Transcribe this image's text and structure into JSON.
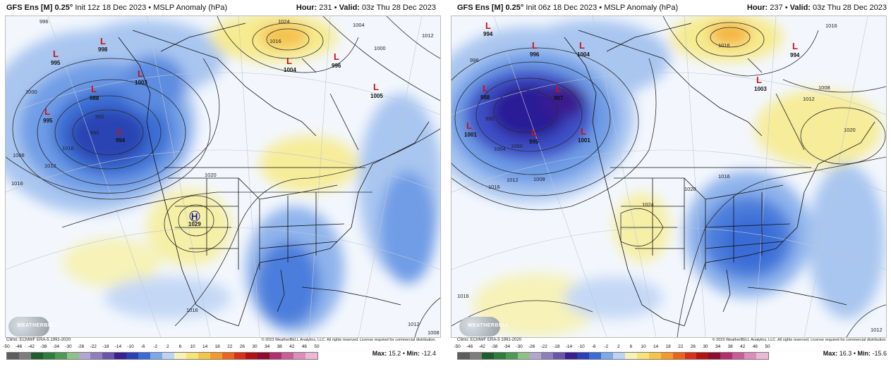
{
  "panels": [
    {
      "model": "GFS Ens [M] 0.25°",
      "init": "Init 12z 18 Dec 2023",
      "field": "MSLP Anomaly (hPa)",
      "hour_label": "Hour:",
      "hour_value": "231",
      "valid_label": "Valid:",
      "valid_value": "03z Thu 28 Dec 2023",
      "max_label": "Max:",
      "max_value": "15.2",
      "min_label": "Min:",
      "min_value": "-12.4",
      "pressure_labels": [
        {
          "type": "L",
          "value": "998"
        },
        {
          "type": "L",
          "value": "995"
        },
        {
          "type": "L",
          "value": "1003"
        },
        {
          "type": "L",
          "value": "988"
        },
        {
          "type": "L",
          "value": "995"
        },
        {
          "type": "L",
          "value": "994"
        },
        {
          "type": "L",
          "value": "1004"
        },
        {
          "type": "L",
          "value": "996"
        },
        {
          "type": "L",
          "value": "1005"
        },
        {
          "type": "H",
          "value": "1029"
        }
      ],
      "isobar_labels": [
        "996",
        "1004",
        "1008",
        "1016",
        "1012",
        "1000",
        "992",
        "996",
        "1020",
        "1024",
        "1016",
        "1004",
        "1000",
        "1012",
        "1016",
        "1012",
        "1008"
      ]
    },
    {
      "model": "GFS Ens [M] 0.25°",
      "init": "Init 06z 18 Dec 2023",
      "field": "MSLP Anomaly (hPa)",
      "hour_label": "Hour:",
      "hour_value": "237",
      "valid_label": "Valid:",
      "valid_value": "03z Thu 28 Dec 2023",
      "max_label": "Max:",
      "max_value": "16.3",
      "min_label": "Min:",
      "min_value": "-15.6",
      "pressure_labels": [
        {
          "type": "L",
          "value": "994"
        },
        {
          "type": "L",
          "value": "996"
        },
        {
          "type": "L",
          "value": "1004"
        },
        {
          "type": "L",
          "value": "988"
        },
        {
          "type": "L",
          "value": "987"
        },
        {
          "type": "L",
          "value": "1001"
        },
        {
          "type": "L",
          "value": "995"
        },
        {
          "type": "L",
          "value": "1001"
        },
        {
          "type": "L",
          "value": "1003"
        },
        {
          "type": "L",
          "value": "994"
        }
      ],
      "isobar_labels": [
        "996",
        "992",
        "1000",
        "1004",
        "1008",
        "1012",
        "1016",
        "1016",
        "1024",
        "1020",
        "1016",
        "1012",
        "1008",
        "1020",
        "1016",
        "1016",
        "1012"
      ]
    }
  ],
  "footer": {
    "climo": "Climo: ECMWF ERA-5 1991-2020",
    "copyright": "© 2023 WeatherBELL Analytics, LLC. All rights reserved. License required for commercial distribution.",
    "logo_text": "WEATHERBELL"
  },
  "colorbar": {
    "ticks": [
      "-50",
      "-46",
      "-42",
      "-38",
      "-34",
      "-30",
      "-26",
      "-22",
      "-18",
      "-14",
      "-10",
      "-6",
      "-2",
      "2",
      "6",
      "10",
      "14",
      "18",
      "22",
      "26",
      "30",
      "34",
      "38",
      "42",
      "46",
      "50"
    ],
    "colors": [
      "#5d5d5d",
      "#7d7d7d",
      "#1f5d2e",
      "#2f7d3e",
      "#4e9a55",
      "#8fc08a",
      "#b2a8cf",
      "#8e7fbc",
      "#6a55a8",
      "#3b1f8f",
      "#2a3fb8",
      "#3a6cd6",
      "#7fa8e8",
      "#bcd4f4",
      "#f6f2b8",
      "#f6e37a",
      "#f5c54a",
      "#f29a2e",
      "#e9651f",
      "#d8311a",
      "#b31212",
      "#8e0c2f",
      "#b0306d",
      "#c85e95",
      "#dc8eb8",
      "#ebb8d6"
    ]
  }
}
